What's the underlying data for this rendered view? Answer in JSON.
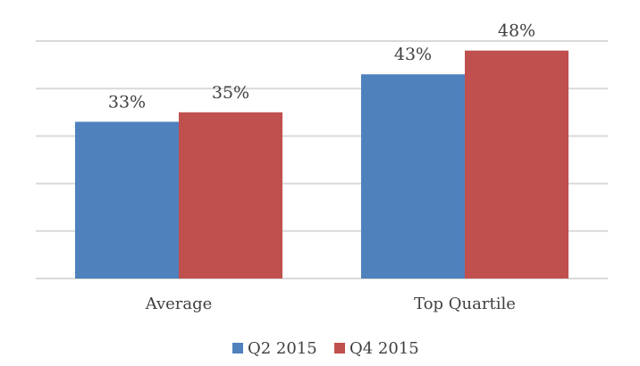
{
  "chart_data": {
    "type": "bar",
    "title": "",
    "xlabel": "",
    "ylabel": "",
    "categories": [
      "Average",
      "Top Quartile"
    ],
    "series": [
      {
        "name": "Q2 2015",
        "color": "#4f81bd",
        "values": [
          33,
          43
        ],
        "labels": [
          "33%",
          "43%"
        ]
      },
      {
        "name": "Q4 2015",
        "color": "#c0504d",
        "values": [
          35,
          48
        ],
        "labels": [
          "35%",
          "48%"
        ]
      }
    ],
    "ylim": [
      0,
      50
    ],
    "yticks": [
      0,
      10,
      20,
      30,
      40,
      50
    ],
    "y_tick_labels_shown": false,
    "grid": true,
    "legend_position": "bottom"
  }
}
